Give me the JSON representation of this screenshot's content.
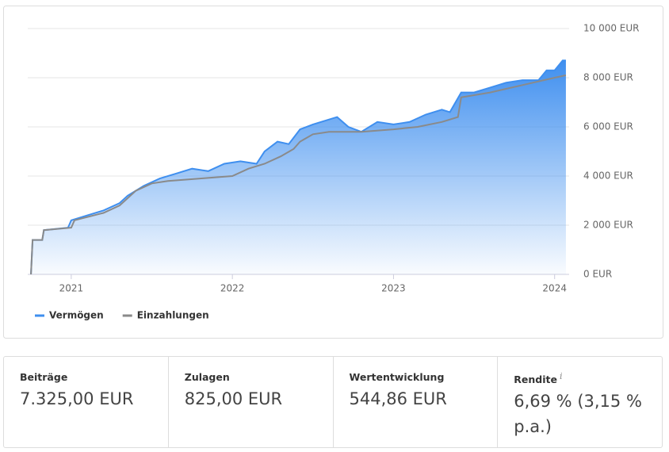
{
  "chart_data": {
    "type": "area",
    "xlim": [
      2020.73,
      2024.09
    ],
    "xticks": [
      2021,
      2022,
      2023,
      2024
    ],
    "ylim": [
      0,
      10000
    ],
    "yticks": [
      {
        "value": 0,
        "label": "0 EUR"
      },
      {
        "value": 2000,
        "label": "2 000 EUR"
      },
      {
        "value": 4000,
        "label": "4 000 EUR"
      },
      {
        "value": 6000,
        "label": "6 000 EUR"
      },
      {
        "value": 8000,
        "label": "8 000 EUR"
      },
      {
        "value": 10000,
        "label": "10 000 EUR"
      }
    ],
    "grid": true,
    "legend": "bottom-left",
    "series": [
      {
        "name": "Vermögen",
        "color": "#3f8fef",
        "style": "area",
        "x": [
          2020.75,
          2020.76,
          2020.82,
          2020.83,
          2020.98,
          2021.0,
          2021.1,
          2021.2,
          2021.3,
          2021.35,
          2021.45,
          2021.55,
          2021.65,
          2021.75,
          2021.85,
          2021.95,
          2022.05,
          2022.15,
          2022.2,
          2022.28,
          2022.35,
          2022.42,
          2022.5,
          2022.6,
          2022.65,
          2022.72,
          2022.8,
          2022.9,
          2023.0,
          2023.1,
          2023.2,
          2023.3,
          2023.35,
          2023.42,
          2023.5,
          2023.6,
          2023.7,
          2023.8,
          2023.9,
          2023.95,
          2024.0,
          2024.05,
          2024.07
        ],
        "values": [
          0,
          1400,
          1400,
          1800,
          1900,
          2200,
          2400,
          2600,
          2900,
          3200,
          3600,
          3900,
          4100,
          4300,
          4200,
          4500,
          4600,
          4500,
          5000,
          5400,
          5300,
          5900,
          6100,
          6300,
          6400,
          6000,
          5800,
          6200,
          6100,
          6200,
          6500,
          6700,
          6600,
          7400,
          7400,
          7600,
          7800,
          7900,
          7900,
          8300,
          8300,
          8700,
          8700
        ]
      },
      {
        "name": "Einzahlungen",
        "color": "#8a8a8a",
        "style": "line",
        "x": [
          2020.75,
          2020.76,
          2020.82,
          2020.83,
          2021.0,
          2021.02,
          2021.2,
          2021.3,
          2021.4,
          2021.5,
          2021.6,
          2021.8,
          2022.0,
          2022.1,
          2022.2,
          2022.3,
          2022.38,
          2022.42,
          2022.5,
          2022.6,
          2022.8,
          2023.0,
          2023.15,
          2023.3,
          2023.4,
          2023.42,
          2023.6,
          2023.8,
          2024.0,
          2024.07
        ],
        "values": [
          0,
          1400,
          1400,
          1800,
          1900,
          2200,
          2500,
          2800,
          3400,
          3700,
          3800,
          3900,
          4000,
          4300,
          4500,
          4800,
          5100,
          5400,
          5700,
          5800,
          5800,
          5900,
          6000,
          6200,
          6400,
          7200,
          7400,
          7700,
          8000,
          8100
        ]
      }
    ]
  },
  "summary": [
    {
      "label": "Beiträge",
      "value": "7.325,00 EUR"
    },
    {
      "label": "Zulagen",
      "value": "825,00 EUR"
    },
    {
      "label": "Wertentwicklung",
      "value": "544,86 EUR"
    },
    {
      "label": "Rendite",
      "info": "i",
      "value": "6,69 % (3,15 % p.a.)"
    }
  ]
}
